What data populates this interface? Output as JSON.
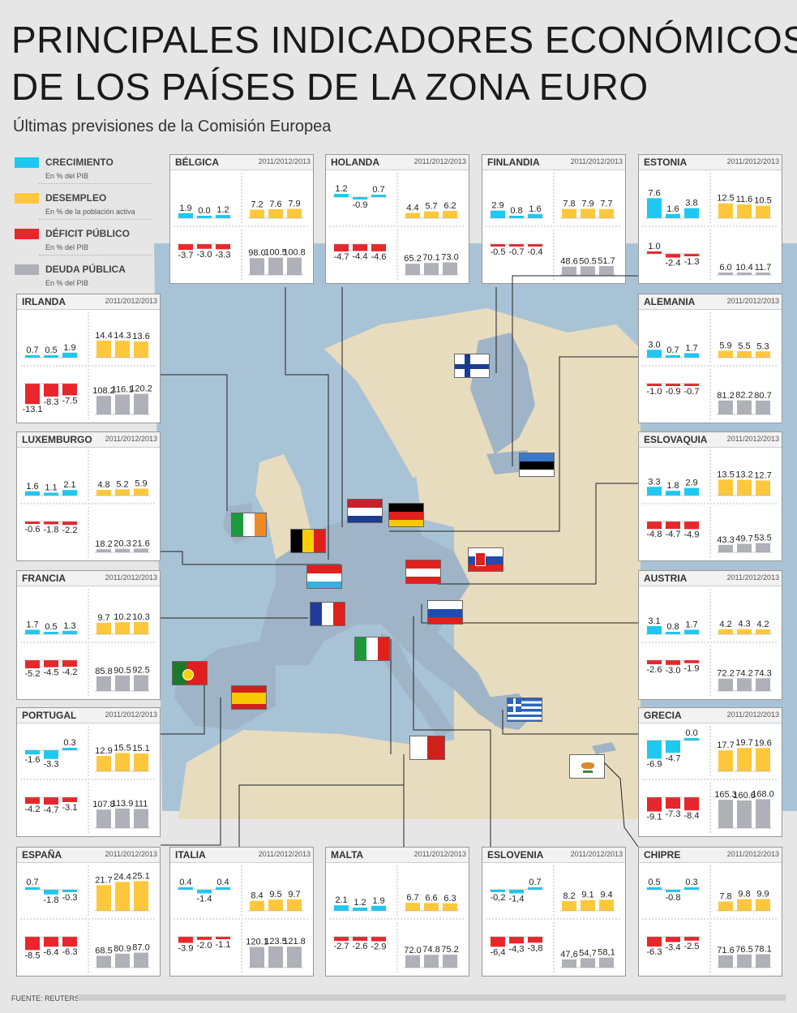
{
  "title_line1": "PRINCIPALES INDICADORES ECONÓMICOS",
  "title_line2": "DE LOS PAÍSES DE LA ZONA EURO",
  "subtitle": "Últimas previsiones de la Comisión Europea",
  "source": "FUENTE: REUTERS.",
  "years_label": "2011/2012/2013",
  "colors": {
    "growth": "#1ec8f0",
    "unemployment": "#ffc83c",
    "deficit": "#e8262c",
    "debt": "#b0b0b8",
    "sea": "#a9c3d6",
    "land": "#e8dcbf",
    "euro": "#9fb4c7"
  },
  "legend": [
    {
      "label": "CRECIMIENTO",
      "unit": "En % del PIB",
      "color": "#1ec8f0"
    },
    {
      "label": "DESEMPLEO",
      "unit": "En % de la población activa",
      "color": "#ffc83c"
    },
    {
      "label": "DÉFICIT PÚBLICO",
      "unit": "En % del PIB",
      "color": "#e8262c"
    },
    {
      "label": "DEUDA PÚBLICA",
      "unit": "En % del PIB",
      "color": "#b0b0b8"
    }
  ],
  "chart_data": [
    {
      "type": "bar",
      "country": "BÉLGICA",
      "categories": [
        "2011",
        "2012",
        "2013"
      ],
      "growth": [
        1.9,
        0.0,
        1.2
      ],
      "unemployment": [
        7.2,
        7.6,
        7.9
      ],
      "deficit": [
        -3.7,
        -3.0,
        -3.3
      ],
      "debt": [
        98.0,
        100.5,
        100.8
      ],
      "labels": {
        "growth": [
          "1.9",
          "0.0",
          "1.2"
        ],
        "unemployment": [
          "7.2",
          "7.6",
          "7.9"
        ],
        "deficit": [
          "-3.7",
          "-3.0",
          "-3.3"
        ],
        "debt": [
          "98.0",
          "100.5",
          "100.8"
        ]
      }
    },
    {
      "type": "bar",
      "country": "HOLANDA",
      "categories": [
        "2011",
        "2012",
        "2013"
      ],
      "growth": [
        1.2,
        -0.9,
        0.7
      ],
      "unemployment": [
        4.4,
        5.7,
        6.2
      ],
      "deficit": [
        -4.7,
        -4.4,
        -4.6
      ],
      "debt": [
        65.2,
        70.1,
        73.0
      ],
      "labels": {
        "growth": [
          "1.2",
          "-0.9",
          "0.7"
        ],
        "unemployment": [
          "4.4",
          "5.7",
          "6.2"
        ],
        "deficit": [
          "-4.7",
          "-4.4",
          "-4.6"
        ],
        "debt": [
          "65.2",
          "70.1",
          "73.0"
        ]
      }
    },
    {
      "type": "bar",
      "country": "FINLANDIA",
      "categories": [
        "2011",
        "2012",
        "2013"
      ],
      "growth": [
        2.9,
        0.8,
        1.6
      ],
      "unemployment": [
        7.8,
        7.9,
        7.7
      ],
      "deficit": [
        -0.5,
        -0.7,
        -0.4
      ],
      "debt": [
        48.6,
        50.5,
        51.7
      ],
      "labels": {
        "growth": [
          "2.9",
          "0.8",
          "1.6"
        ],
        "unemployment": [
          "7.8",
          "7.9",
          "7.7"
        ],
        "deficit": [
          "-0.5",
          "-0.7",
          "-0.4"
        ],
        "debt": [
          "48.6",
          "50.5",
          "51.7"
        ]
      }
    },
    {
      "type": "bar",
      "country": "ESTONIA",
      "categories": [
        "2011",
        "2012",
        "2013"
      ],
      "growth": [
        7.6,
        1.6,
        3.8
      ],
      "unemployment": [
        12.5,
        11.6,
        10.5
      ],
      "deficit": [
        1.0,
        -2.4,
        -1.3
      ],
      "debt": [
        6.0,
        10.4,
        11.7
      ],
      "labels": {
        "growth": [
          "7.6",
          "1.6",
          "3.8"
        ],
        "unemployment": [
          "12.5",
          "11.6",
          "10.5"
        ],
        "deficit": [
          "1.0",
          "-2.4",
          "-1.3"
        ],
        "debt": [
          "6.0",
          "10.4",
          "11.7"
        ]
      }
    },
    {
      "type": "bar",
      "country": "IRLANDA",
      "categories": [
        "2011",
        "2012",
        "2013"
      ],
      "growth": [
        0.7,
        0.5,
        1.9
      ],
      "unemployment": [
        14.4,
        14.3,
        13.6
      ],
      "deficit": [
        -13.1,
        -8.3,
        -7.5
      ],
      "debt": [
        108.2,
        116.1,
        120.2
      ],
      "labels": {
        "growth": [
          "0.7",
          "0.5",
          "1.9"
        ],
        "unemployment": [
          "14.4",
          "14.3",
          "13.6"
        ],
        "deficit": [
          "-13.1",
          "-8.3",
          "-7.5"
        ],
        "debt": [
          "108.2",
          "116.1",
          "120.2"
        ]
      }
    },
    {
      "type": "bar",
      "country": "ALEMANIA",
      "categories": [
        "2011",
        "2012",
        "2013"
      ],
      "growth": [
        3.0,
        0.7,
        1.7
      ],
      "unemployment": [
        5.9,
        5.5,
        5.3
      ],
      "deficit": [
        -1.0,
        -0.9,
        -0.7
      ],
      "debt": [
        81.2,
        82.2,
        80.7
      ],
      "labels": {
        "growth": [
          "3.0",
          "0.7",
          "1.7"
        ],
        "unemployment": [
          "5.9",
          "5.5",
          "5.3"
        ],
        "deficit": [
          "-1.0",
          "-0.9",
          "-0.7"
        ],
        "debt": [
          "81.2",
          "82.2",
          "80.7"
        ]
      }
    },
    {
      "type": "bar",
      "country": "LUXEMBURGO",
      "categories": [
        "2011",
        "2012",
        "2013"
      ],
      "growth": [
        1.6,
        1.1,
        2.1
      ],
      "unemployment": [
        4.8,
        5.2,
        5.9
      ],
      "deficit": [
        -0.6,
        -1.8,
        -2.2
      ],
      "debt": [
        18.2,
        20.3,
        21.6
      ],
      "labels": {
        "growth": [
          "1.6",
          "1.1",
          "2.1"
        ],
        "unemployment": [
          "4.8",
          "5.2",
          "5.9"
        ],
        "deficit": [
          "-0.6",
          "-1.8",
          "-2.2"
        ],
        "debt": [
          "18.2",
          "20.3",
          "21.6"
        ]
      }
    },
    {
      "type": "bar",
      "country": "ESLOVAQUIA",
      "categories": [
        "2011",
        "2012",
        "2013"
      ],
      "growth": [
        3.3,
        1.8,
        2.9
      ],
      "unemployment": [
        13.5,
        13.2,
        12.7
      ],
      "deficit": [
        -4.8,
        -4.7,
        -4.9
      ],
      "debt": [
        43.3,
        49.7,
        53.5
      ],
      "labels": {
        "growth": [
          "3.3",
          "1.8",
          "2.9"
        ],
        "unemployment": [
          "13.5",
          "13.2",
          "12.7"
        ],
        "deficit": [
          "-4.8",
          "-4.7",
          "-4.9"
        ],
        "debt": [
          "43.3",
          "49.7",
          "53.5"
        ]
      }
    },
    {
      "type": "bar",
      "country": "FRANCIA",
      "categories": [
        "2011",
        "2012",
        "2013"
      ],
      "growth": [
        1.7,
        0.5,
        1.3
      ],
      "unemployment": [
        9.7,
        10.2,
        10.3
      ],
      "deficit": [
        -5.2,
        -4.5,
        -4.2
      ],
      "debt": [
        85.8,
        90.5,
        92.5
      ],
      "labels": {
        "growth": [
          "1.7",
          "0.5",
          "1.3"
        ],
        "unemployment": [
          "9.7",
          "10.2",
          "10.3"
        ],
        "deficit": [
          "-5.2",
          "-4.5",
          "-4.2"
        ],
        "debt": [
          "85.8",
          "90.5",
          "92.5"
        ]
      }
    },
    {
      "type": "bar",
      "country": "AUSTRIA",
      "categories": [
        "2011",
        "2012",
        "2013"
      ],
      "growth": [
        3.1,
        0.8,
        1.7
      ],
      "unemployment": [
        4.2,
        4.3,
        4.2
      ],
      "deficit": [
        -2.6,
        -3.0,
        -1.9
      ],
      "debt": [
        72.2,
        74.2,
        74.3
      ],
      "labels": {
        "growth": [
          "3.1",
          "0.8",
          "1.7"
        ],
        "unemployment": [
          "4.2",
          "4.3",
          "4.2"
        ],
        "deficit": [
          "-2.6",
          "-3.0",
          "-1.9"
        ],
        "debt": [
          "72.2",
          "74.2",
          "74.3"
        ]
      }
    },
    {
      "type": "bar",
      "country": "PORTUGAL",
      "categories": [
        "2011",
        "2012",
        "2013"
      ],
      "growth": [
        -1.6,
        -3.3,
        0.3
      ],
      "unemployment": [
        12.9,
        15.5,
        15.1
      ],
      "deficit": [
        -4.2,
        -4.7,
        -3.1
      ],
      "debt": [
        107.8,
        113.9,
        111
      ],
      "labels": {
        "growth": [
          "-1.6",
          "-3.3",
          "0.3"
        ],
        "unemployment": [
          "12.9",
          "15.5",
          "15.1"
        ],
        "deficit": [
          "-4.2",
          "-4.7",
          "-3.1"
        ],
        "debt": [
          "107.8",
          "113.9",
          "111"
        ]
      }
    },
    {
      "type": "bar",
      "country": "GRECIA",
      "categories": [
        "2011",
        "2012",
        "2013"
      ],
      "growth": [
        -6.9,
        -4.7,
        0.0
      ],
      "unemployment": [
        17.7,
        19.7,
        19.6
      ],
      "deficit": [
        -9.1,
        -7.3,
        -8.4
      ],
      "debt": [
        165.3,
        160.6,
        168.0
      ],
      "labels": {
        "growth": [
          "-6.9",
          "-4.7",
          "0.0"
        ],
        "unemployment": [
          "17.7",
          "19.7",
          "19.6"
        ],
        "deficit": [
          "-9.1",
          "-7.3",
          "-8.4"
        ],
        "debt": [
          "165.3",
          "160.6",
          "168.0"
        ]
      }
    },
    {
      "type": "bar",
      "country": "ESPAÑA",
      "categories": [
        "2011",
        "2012",
        "2013"
      ],
      "growth": [
        0.7,
        -1.8,
        -0.3
      ],
      "unemployment": [
        21.7,
        24.4,
        25.1
      ],
      "deficit": [
        -8.5,
        -6.4,
        -6.3
      ],
      "debt": [
        68.5,
        80.9,
        87.0
      ],
      "labels": {
        "growth": [
          "0.7",
          "-1.8",
          "-0.3"
        ],
        "unemployment": [
          "21.7",
          "24.4",
          "25.1"
        ],
        "deficit": [
          "-8.5",
          "-6.4",
          "-6.3"
        ],
        "debt": [
          "68.5",
          "80.9",
          "87.0"
        ]
      }
    },
    {
      "type": "bar",
      "country": "ITALIA",
      "categories": [
        "2011",
        "2012",
        "2013"
      ],
      "growth": [
        0.4,
        -1.4,
        0.4
      ],
      "unemployment": [
        8.4,
        9.5,
        9.7
      ],
      "deficit": [
        -3.9,
        -2.0,
        -1.1
      ],
      "debt": [
        120.1,
        123.5,
        121.8
      ],
      "labels": {
        "growth": [
          "0.4",
          "-1.4",
          "0.4"
        ],
        "unemployment": [
          "8.4",
          "9.5",
          "9.7"
        ],
        "deficit": [
          "-3.9",
          "-2.0",
          "-1.1"
        ],
        "debt": [
          "120.1",
          "123.5",
          "121.8"
        ]
      }
    },
    {
      "type": "bar",
      "country": "MALTA",
      "categories": [
        "2011",
        "2012",
        "2013"
      ],
      "growth": [
        2.1,
        1.2,
        1.9
      ],
      "unemployment": [
        6.7,
        6.6,
        6.3
      ],
      "deficit": [
        -2.7,
        -2.6,
        -2.9
      ],
      "debt": [
        72.0,
        74.8,
        75.2
      ],
      "labels": {
        "growth": [
          "2.1",
          "1.2",
          "1.9"
        ],
        "unemployment": [
          "6.7",
          "6.6",
          "6.3"
        ],
        "deficit": [
          "-2.7",
          "-2.6",
          "-2.9"
        ],
        "debt": [
          "72.0",
          "74.8",
          "75.2"
        ]
      }
    },
    {
      "type": "bar",
      "country": "ESLOVENIA",
      "categories": [
        "2011",
        "2012",
        "2013"
      ],
      "growth": [
        -0.2,
        -1.4,
        0.7
      ],
      "unemployment": [
        8.2,
        9.1,
        9.4
      ],
      "deficit": [
        -6.4,
        -4.3,
        -3.8
      ],
      "debt": [
        47.6,
        54.7,
        58.1
      ],
      "labels": {
        "growth": [
          "-0,2",
          "-1,4",
          "0.7"
        ],
        "unemployment": [
          "8.2",
          "9.1",
          "9.4"
        ],
        "deficit": [
          "-6,4",
          "-4,3",
          "-3,8"
        ],
        "debt": [
          "47,6",
          "54,7",
          "58,1"
        ]
      }
    },
    {
      "type": "bar",
      "country": "CHIPRE",
      "categories": [
        "2011",
        "2012",
        "2013"
      ],
      "growth": [
        0.5,
        -0.8,
        0.3
      ],
      "unemployment": [
        7.8,
        9.8,
        9.9
      ],
      "deficit": [
        -6.3,
        -3.4,
        -2.5
      ],
      "debt": [
        71.6,
        76.5,
        78.1
      ],
      "labels": {
        "growth": [
          "0.5",
          "-0.8",
          "0.3"
        ],
        "unemployment": [
          "7.8",
          "9.8",
          "9.9"
        ],
        "deficit": [
          "-6.3",
          "-3.4",
          "-2.5"
        ],
        "debt": [
          "71.6",
          "76.5",
          "78.1"
        ]
      }
    }
  ]
}
